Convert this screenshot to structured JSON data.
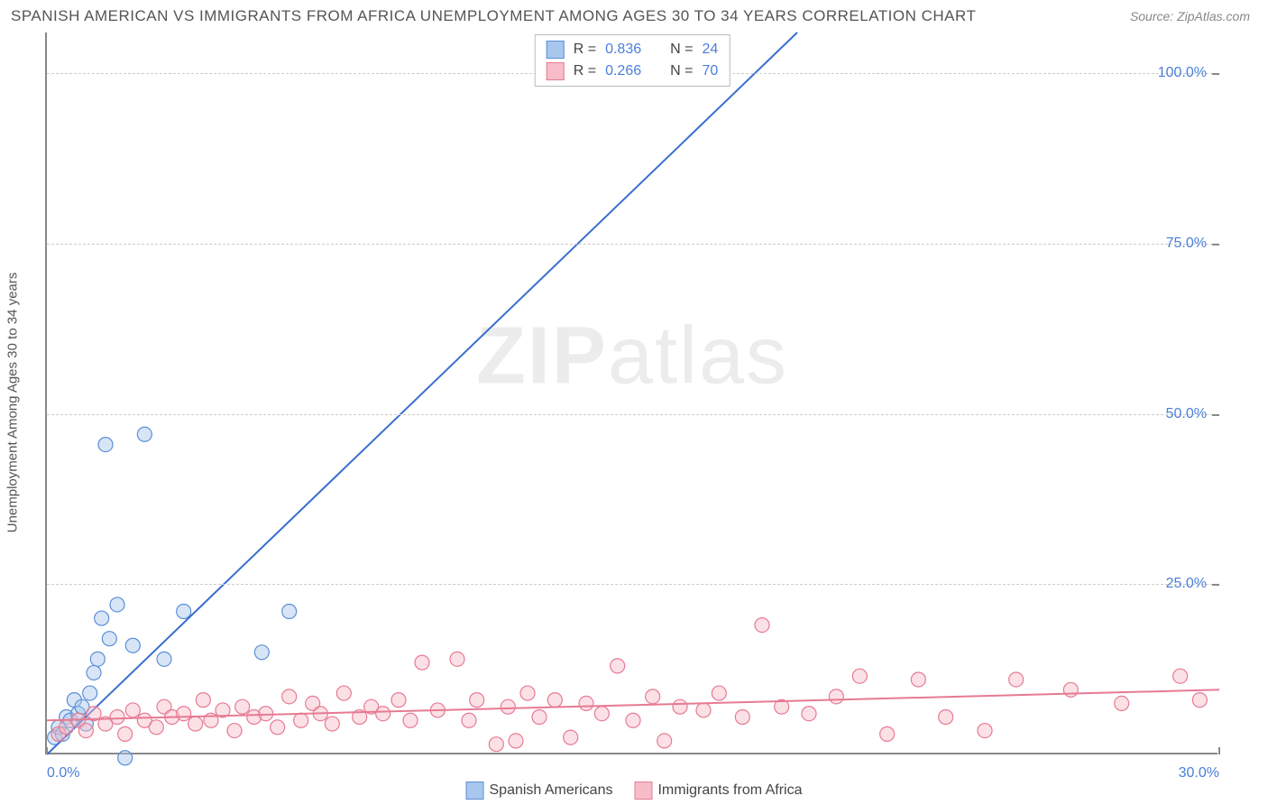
{
  "title": "SPANISH AMERICAN VS IMMIGRANTS FROM AFRICA UNEMPLOYMENT AMONG AGES 30 TO 34 YEARS CORRELATION CHART",
  "source": "Source: ZipAtlas.com",
  "ylabel": "Unemployment Among Ages 30 to 34 years",
  "watermark_bold": "ZIP",
  "watermark_rest": "atlas",
  "chart": {
    "type": "scatter",
    "xlim": [
      0,
      30
    ],
    "ylim": [
      0,
      106
    ],
    "x_ticks": [
      {
        "v": 0,
        "label": "0.0%"
      },
      {
        "v": 30,
        "label": "30.0%"
      }
    ],
    "y_ticks": [
      {
        "v": 25,
        "label": "25.0%"
      },
      {
        "v": 50,
        "label": "50.0%"
      },
      {
        "v": 75,
        "label": "75.0%"
      },
      {
        "v": 100,
        "label": "100.0%"
      }
    ],
    "gridlines_y": [
      25,
      50,
      75,
      100
    ],
    "background_color": "#ffffff",
    "grid_color": "#cccccc",
    "marker_radius": 8,
    "marker_opacity": 0.45,
    "line_width": 2,
    "series": [
      {
        "key": "spanish",
        "label": "Spanish Americans",
        "color_fill": "#a9c6ec",
        "color_stroke": "#5a8fd8",
        "line_color": "#3b6fd0",
        "R": 0.836,
        "N": 24,
        "trend": {
          "x1": 0,
          "y1": 0,
          "x2": 19.2,
          "y2": 106
        },
        "points": [
          [
            0.2,
            2.5
          ],
          [
            0.3,
            4.0
          ],
          [
            0.4,
            3.0
          ],
          [
            0.5,
            5.5
          ],
          [
            0.6,
            5.0
          ],
          [
            0.7,
            8.0
          ],
          [
            0.8,
            6.0
          ],
          [
            0.9,
            7.0
          ],
          [
            1.0,
            4.5
          ],
          [
            1.1,
            9.0
          ],
          [
            1.2,
            12.0
          ],
          [
            1.3,
            14.0
          ],
          [
            1.4,
            20.0
          ],
          [
            1.6,
            17.0
          ],
          [
            1.8,
            22.0
          ],
          [
            2.2,
            16.0
          ],
          [
            2.0,
            -0.5
          ],
          [
            3.0,
            14.0
          ],
          [
            3.5,
            21.0
          ],
          [
            5.5,
            15.0
          ],
          [
            6.2,
            21.0
          ],
          [
            2.5,
            47.0
          ],
          [
            1.5,
            45.5
          ],
          [
            17.0,
            103.0
          ]
        ]
      },
      {
        "key": "africa",
        "label": "Immigrants from Africa",
        "color_fill": "#f6bdc8",
        "color_stroke": "#e77a93",
        "line_color": "#e77a93",
        "R": 0.266,
        "N": 70,
        "trend": {
          "x1": 0,
          "y1": 5.0,
          "x2": 30,
          "y2": 9.5
        },
        "points": [
          [
            0.3,
            3.0
          ],
          [
            0.5,
            4.0
          ],
          [
            0.8,
            5.0
          ],
          [
            1.0,
            3.5
          ],
          [
            1.2,
            6.0
          ],
          [
            1.5,
            4.5
          ],
          [
            1.8,
            5.5
          ],
          [
            2.0,
            3.0
          ],
          [
            2.2,
            6.5
          ],
          [
            2.5,
            5.0
          ],
          [
            2.8,
            4.0
          ],
          [
            3.0,
            7.0
          ],
          [
            3.2,
            5.5
          ],
          [
            3.5,
            6.0
          ],
          [
            3.8,
            4.5
          ],
          [
            4.0,
            8.0
          ],
          [
            4.2,
            5.0
          ],
          [
            4.5,
            6.5
          ],
          [
            4.8,
            3.5
          ],
          [
            5.0,
            7.0
          ],
          [
            5.3,
            5.5
          ],
          [
            5.6,
            6.0
          ],
          [
            5.9,
            4.0
          ],
          [
            6.2,
            8.5
          ],
          [
            6.5,
            5.0
          ],
          [
            6.8,
            7.5
          ],
          [
            7.0,
            6.0
          ],
          [
            7.3,
            4.5
          ],
          [
            7.6,
            9.0
          ],
          [
            8.0,
            5.5
          ],
          [
            8.3,
            7.0
          ],
          [
            8.6,
            6.0
          ],
          [
            9.0,
            8.0
          ],
          [
            9.3,
            5.0
          ],
          [
            9.6,
            13.5
          ],
          [
            10.0,
            6.5
          ],
          [
            10.5,
            14.0
          ],
          [
            10.8,
            5.0
          ],
          [
            11.0,
            8.0
          ],
          [
            11.5,
            1.5
          ],
          [
            11.8,
            7.0
          ],
          [
            12.0,
            2.0
          ],
          [
            12.3,
            9.0
          ],
          [
            12.6,
            5.5
          ],
          [
            13.0,
            8.0
          ],
          [
            13.4,
            2.5
          ],
          [
            13.8,
            7.5
          ],
          [
            14.2,
            6.0
          ],
          [
            14.6,
            13.0
          ],
          [
            15.0,
            5.0
          ],
          [
            15.5,
            8.5
          ],
          [
            15.8,
            2.0
          ],
          [
            16.2,
            7.0
          ],
          [
            16.8,
            6.5
          ],
          [
            17.2,
            9.0
          ],
          [
            17.8,
            5.5
          ],
          [
            18.3,
            19.0
          ],
          [
            18.8,
            7.0
          ],
          [
            19.5,
            6.0
          ],
          [
            20.2,
            8.5
          ],
          [
            20.8,
            11.5
          ],
          [
            21.5,
            3.0
          ],
          [
            22.3,
            11.0
          ],
          [
            23.0,
            5.5
          ],
          [
            24.0,
            3.5
          ],
          [
            24.8,
            11.0
          ],
          [
            26.2,
            9.5
          ],
          [
            27.5,
            7.5
          ],
          [
            29.0,
            11.5
          ],
          [
            29.5,
            8.0
          ]
        ]
      }
    ]
  },
  "legend_top_rows": [
    {
      "swatch_fill": "#a9c6ec",
      "swatch_stroke": "#5a8fd8",
      "r_label": "R =",
      "r_val": "0.836",
      "n_label": "N =",
      "n_val": "24"
    },
    {
      "swatch_fill": "#f6bdc8",
      "swatch_stroke": "#e77a93",
      "r_label": "R =",
      "r_val": "0.266",
      "n_label": "N =",
      "n_val": "70"
    }
  ],
  "legend_bottom": [
    {
      "swatch_fill": "#a9c6ec",
      "swatch_stroke": "#5a8fd8",
      "label": "Spanish Americans"
    },
    {
      "swatch_fill": "#f6bdc8",
      "swatch_stroke": "#e77a93",
      "label": "Immigrants from Africa"
    }
  ]
}
